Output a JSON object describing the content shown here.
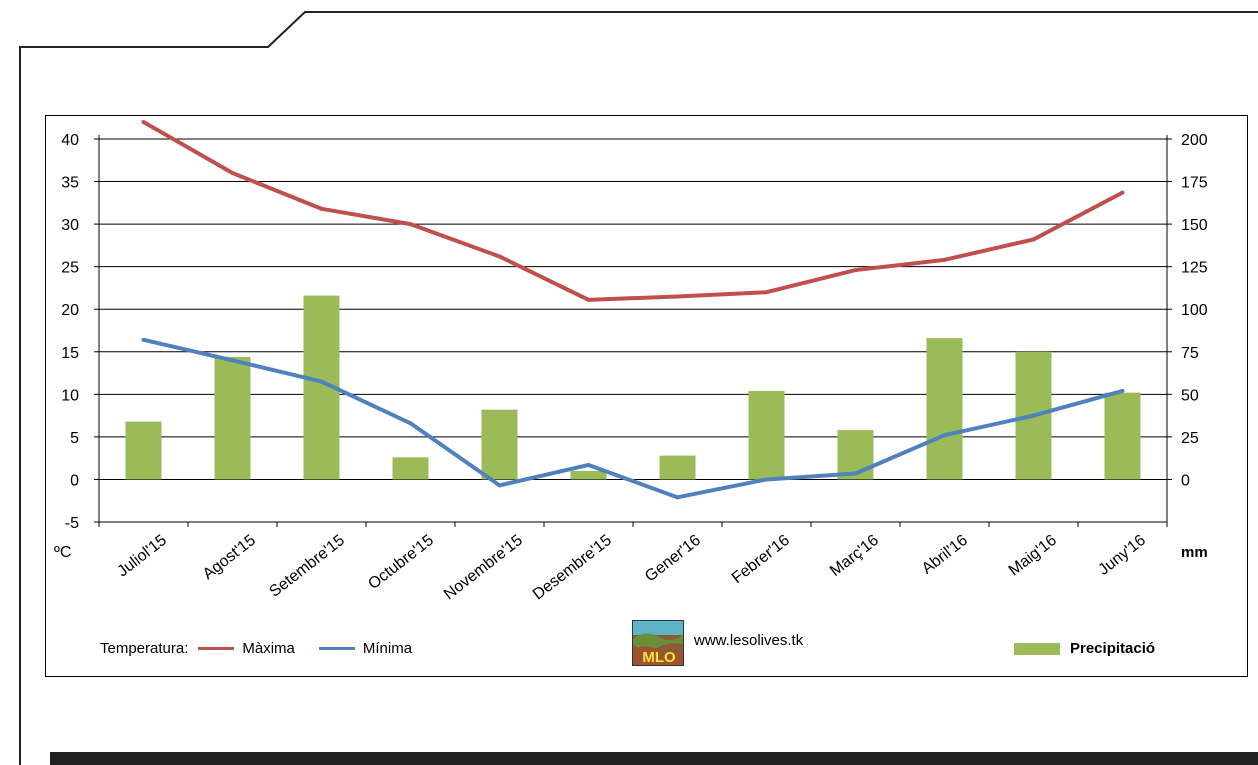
{
  "colors": {
    "max_line": "#c0504d",
    "min_line": "#4f81bd",
    "bars": "#9bbb59",
    "frame": "#222222"
  },
  "chart_data": {
    "type": "bar+line",
    "categories": [
      "Juliol'15",
      "Agost'15",
      "Setembre'15",
      "Octubre'15",
      "Novembre'15",
      "Desembre'15",
      "Gener'16",
      "Febrer'16",
      "Març'16",
      "Abril'16",
      "Maig'16",
      "Juny'16"
    ],
    "series": [
      {
        "name": "Màxima",
        "type": "line",
        "axis": "left",
        "values": [
          42.0,
          36.0,
          31.8,
          30.0,
          26.2,
          21.1,
          21.5,
          22.0,
          24.6,
          25.8,
          28.2,
          33.7
        ]
      },
      {
        "name": "Mínima",
        "type": "line",
        "axis": "left",
        "values": [
          16.4,
          14.0,
          11.5,
          6.6,
          -0.7,
          1.7,
          -2.1,
          0.0,
          0.7,
          5.2,
          7.5,
          10.4
        ]
      },
      {
        "name": "Precipitació",
        "type": "bar",
        "axis": "right",
        "values": [
          34,
          72,
          108,
          13,
          41,
          5,
          14,
          52,
          29,
          83,
          75,
          51
        ]
      }
    ],
    "y_left": {
      "label": "ºC",
      "ticks": [
        40,
        35,
        30,
        25,
        20,
        15,
        10,
        5,
        0,
        -5
      ],
      "range": [
        -5,
        40
      ]
    },
    "y_right": {
      "label": "mm",
      "ticks": [
        200,
        175,
        150,
        125,
        100,
        75,
        50,
        25,
        0
      ],
      "range": [
        -25,
        200
      ]
    },
    "grid": true
  },
  "legend": {
    "temp_label": "Temperatura:",
    "max_label": "Màxima",
    "min_label": "Mínima",
    "precip_label": "Precipitació"
  },
  "site": {
    "url": "www.lesolives.tk",
    "logo_text": "MLO"
  }
}
